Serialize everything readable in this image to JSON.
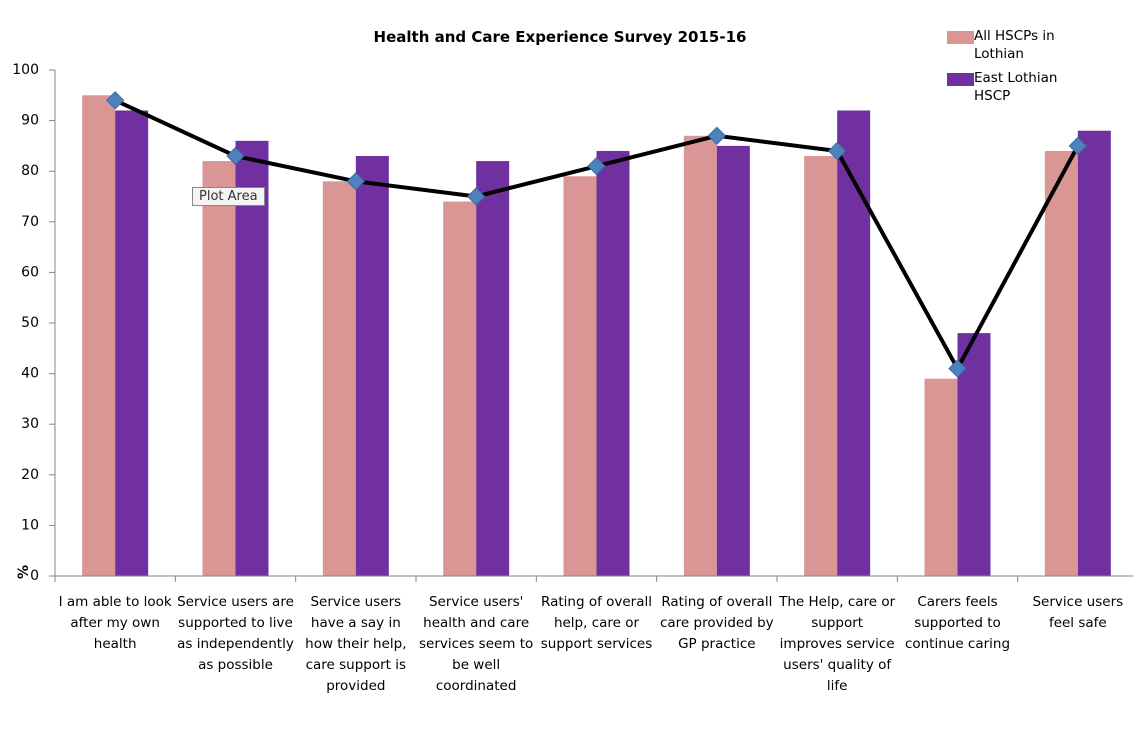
{
  "chart_data": {
    "type": "bar",
    "title": "Health and Care Experience Survey 2015-16",
    "ylabel": "%",
    "annotation": "Plot Area",
    "categories": [
      "I am able to look after my own health",
      "Service users are supported to live as independently as possible",
      "Service users have a say  in how their help, care support is provided",
      "Service users' health and care services seem to be well coordinated",
      "Rating of overall help, care or support services",
      "Rating of overall care provided by GP practice",
      "The Help, care or support improves service users' quality of life",
      "Carers feels supported to continue caring",
      "Service users feel safe"
    ],
    "series": [
      {
        "name": "All HSCPs in Lothian",
        "color": "#d99694",
        "values": [
          95,
          82,
          78,
          74,
          79,
          87,
          83,
          39,
          84
        ]
      },
      {
        "name": "East Lothian  HSCP",
        "color": "#7030a0",
        "values": [
          92,
          86,
          83,
          82,
          84,
          85,
          92,
          48,
          88
        ]
      },
      {
        "type": "line",
        "color": "#000000",
        "marker_color": "#4f81bd",
        "values": [
          94,
          83,
          78,
          75,
          81,
          87,
          84,
          41,
          85
        ]
      }
    ],
    "ylim": [
      0,
      100
    ],
    "yticks": [
      0,
      10,
      20,
      30,
      40,
      50,
      60,
      70,
      80,
      90,
      100
    ],
    "grid": false,
    "legend": "top-right"
  }
}
